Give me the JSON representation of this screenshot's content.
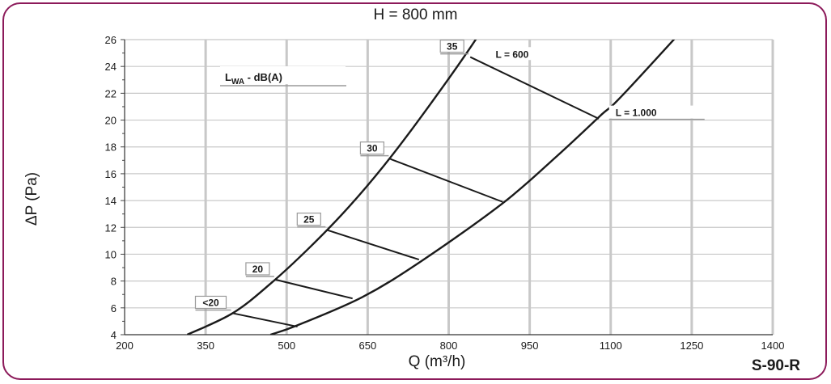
{
  "chart_data": {
    "type": "line",
    "title": "H = 800 mm",
    "xlabel": "Q (m³/h)",
    "ylabel": "ΔP (Pa)",
    "code": "S-90-R",
    "xlim": [
      200,
      1400
    ],
    "ylim": [
      4,
      26
    ],
    "x_ticks": [
      "200",
      "350",
      "500",
      "650",
      "800",
      "950",
      "1100",
      "1250",
      "1400"
    ],
    "y_ticks": [
      "4",
      "6",
      "8",
      "10",
      "12",
      "14",
      "16",
      "18",
      "20",
      "22",
      "24",
      "26"
    ],
    "grid": true,
    "legend_title": "LWA - dB(A)",
    "series": [
      {
        "name": "L = 600",
        "x": [
          316,
          400,
          470,
          540,
          610,
          680,
          750,
          840,
          930
        ],
        "y": [
          4,
          5.6,
          7.8,
          10.4,
          13.3,
          16.6,
          20.3,
          25.4,
          31
        ]
      },
      {
        "name": "L = 1.000",
        "x": [
          470,
          520,
          640,
          750,
          900,
          1000,
          1080,
          1130,
          1330
        ],
        "y": [
          4,
          4.7,
          6.8,
          9.5,
          13.8,
          17.3,
          20.3,
          22.2,
          31
        ]
      }
    ],
    "noise_lines": [
      {
        "label": "<20",
        "from": [
          400,
          5.6
        ],
        "to": [
          520,
          4.6
        ]
      },
      {
        "label": "20",
        "from": [
          480,
          8.1
        ],
        "to": [
          622,
          6.7
        ]
      },
      {
        "label": "25",
        "from": [
          575,
          11.8
        ],
        "to": [
          745,
          9.6
        ]
      },
      {
        "label": "30",
        "from": [
          692,
          17.1
        ],
        "to": [
          900,
          13.9
        ]
      },
      {
        "label": "35",
        "from": [
          840,
          24.7
        ],
        "to": [
          1078,
          20.1
        ]
      }
    ]
  },
  "colors": {
    "frame": "#8c1a5a",
    "grid": "#c8c8c8",
    "curve": "#1a1a1a",
    "label_box": "#9a9a9a"
  }
}
